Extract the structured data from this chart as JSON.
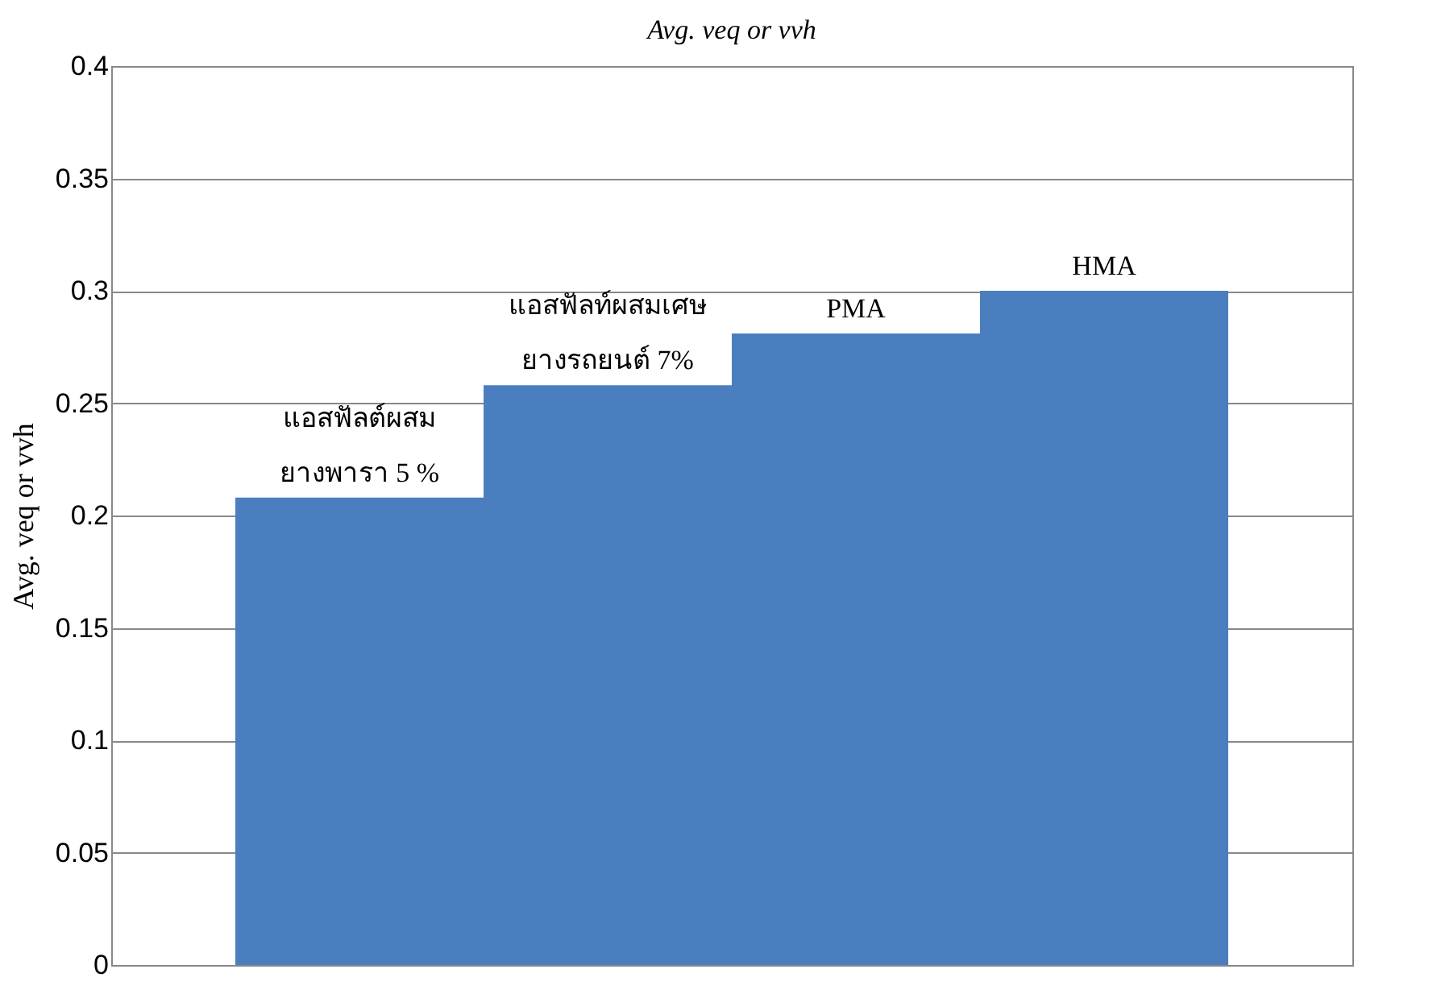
{
  "chart_data": {
    "type": "bar",
    "title": "Avg. veq or vvh",
    "ylabel": "Avg. veq or vvh",
    "categories": [
      "แอสฟัลต์ผสม\nยางพารา 5 %",
      "แอสฟัลท์ผสมเศษ\nยางรถยนต์ 7%",
      "PMA",
      "HMA"
    ],
    "values": [
      0.208,
      0.258,
      0.281,
      0.3
    ],
    "color": "#4a7ebf",
    "ylim": [
      0,
      0.4
    ],
    "yticks": [
      0,
      0.05,
      0.1,
      0.15,
      0.2,
      0.25,
      0.3,
      0.35,
      0.4
    ],
    "grid": "y",
    "tick_labels": "y"
  }
}
